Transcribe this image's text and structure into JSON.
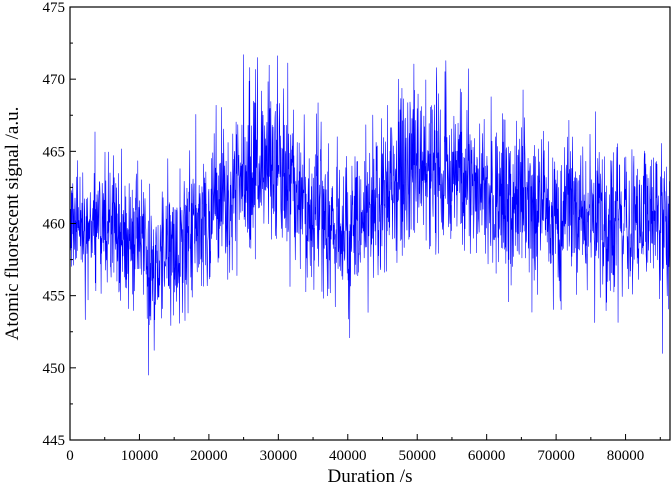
{
  "chart_data": {
    "type": "line",
    "title": "",
    "xlabel": "Duration /s",
    "ylabel": "Atomic fluorescent signal /a.u.",
    "xlim": [
      0,
      86400
    ],
    "ylim": [
      445,
      475
    ],
    "x_ticks": [
      0,
      10000,
      20000,
      30000,
      40000,
      50000,
      60000,
      70000,
      80000
    ],
    "x_tick_labels": [
      "0",
      "10000",
      "20000",
      "30000",
      "40000",
      "50000",
      "60000",
      "70000",
      "80000"
    ],
    "y_ticks": [
      445,
      450,
      455,
      460,
      465,
      470,
      475
    ],
    "y_tick_labels": [
      "445",
      "450",
      "455",
      "460",
      "465",
      "470",
      "475"
    ],
    "grid": false,
    "legend": "none",
    "series": [
      {
        "color": "#0000ff",
        "sampling_interval_s": 40,
        "trend": {
          "x": [
            0,
            5000,
            10000,
            12000,
            15000,
            20000,
            25000,
            28000,
            32000,
            36000,
            40000,
            44000,
            48000,
            52000,
            56000,
            60000,
            66000,
            72000,
            78000,
            84000,
            86400
          ],
          "y": [
            459.5,
            460.0,
            458.5,
            457.5,
            458.0,
            461.0,
            463.5,
            464.0,
            463.0,
            460.0,
            459.0,
            461.5,
            463.5,
            464.0,
            463.0,
            462.0,
            461.0,
            460.5,
            460.0,
            460.5,
            460.0
          ]
        },
        "band_half_width": {
          "x": [
            0,
            10000,
            20000,
            30000,
            40000,
            50000,
            60000,
            70000,
            80000,
            86400
          ],
          "y": [
            5.5,
            5.5,
            6.5,
            7.0,
            6.0,
            6.5,
            6.5,
            6.5,
            6.0,
            6.0
          ]
        },
        "extremes": [
          {
            "x": 11300,
            "y": 449.5
          },
          {
            "x": 25000,
            "y": 471.7
          },
          {
            "x": 27000,
            "y": 471.5
          },
          {
            "x": 52800,
            "y": 470.8
          },
          {
            "x": 85300,
            "y": 451.0
          }
        ]
      }
    ]
  }
}
